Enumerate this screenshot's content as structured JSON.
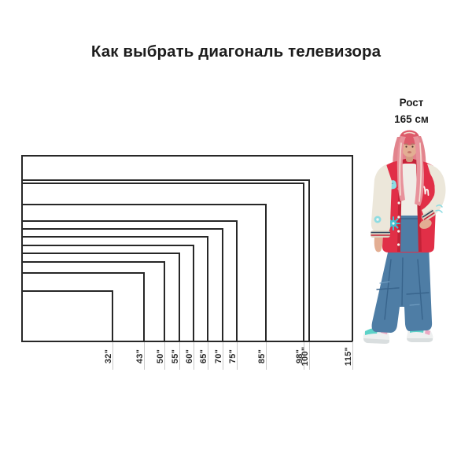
{
  "title": "Как выбрать диагональ телевизора",
  "person_caption": {
    "line1": "Рост",
    "line2": "165 см"
  },
  "chart_data": {
    "type": "nested-rectangles",
    "title": "Как выбрать диагональ телевизора",
    "unit": "дюймы (диагональ экрана)",
    "aspect_ratio": "16:9",
    "categories": [
      "32\"",
      "43\"",
      "50\"",
      "55\"",
      "60\"",
      "65\"",
      "70\"",
      "75\"",
      "85\"",
      "98\"",
      "100\"",
      "115\""
    ],
    "values": [
      32,
      43,
      50,
      55,
      60,
      65,
      70,
      75,
      85,
      98,
      100,
      115
    ],
    "anchor": "shared bottom-left corner",
    "legend_position": "none",
    "grid": false,
    "reference_person": {
      "label": "Рост 165 см",
      "height_cm": 165
    }
  },
  "colors": {
    "background": "#ffffff",
    "text_primary": "#1d1d1d",
    "rect_outline": "#272727",
    "tick_line": "#c9c9c9",
    "label_text": "#2d2d2d",
    "jacket_red": "#e12f47",
    "jacket_red_dark": "#c32338",
    "sleeve_cream": "#ece7da",
    "cuff_cream": "#ddd6c5",
    "patch_teal": "#8edce2",
    "patch_teal_deep": "#3fc3d4",
    "tank_white": "#f0ede7",
    "jeans_blue": "#4e7da5",
    "jeans_blue_dark": "#38648c",
    "jeans_blue_light": "#6f9cc0",
    "skin": "#e3ae93",
    "skin_shade": "#d39c82",
    "hair_pink": "#e2848d",
    "hair_crown": "#dd5a6a",
    "hair_front": "#e8929b",
    "hair_streak": "#f4e0d4",
    "shoe_white": "#eef0f0",
    "shoe_sole": "#d9dedf",
    "shoe_teal": "#5cd2c8",
    "shoe_pink": "#eba9c3",
    "button_white": "#f7f5f0",
    "stripe_navy": "#31475e"
  }
}
